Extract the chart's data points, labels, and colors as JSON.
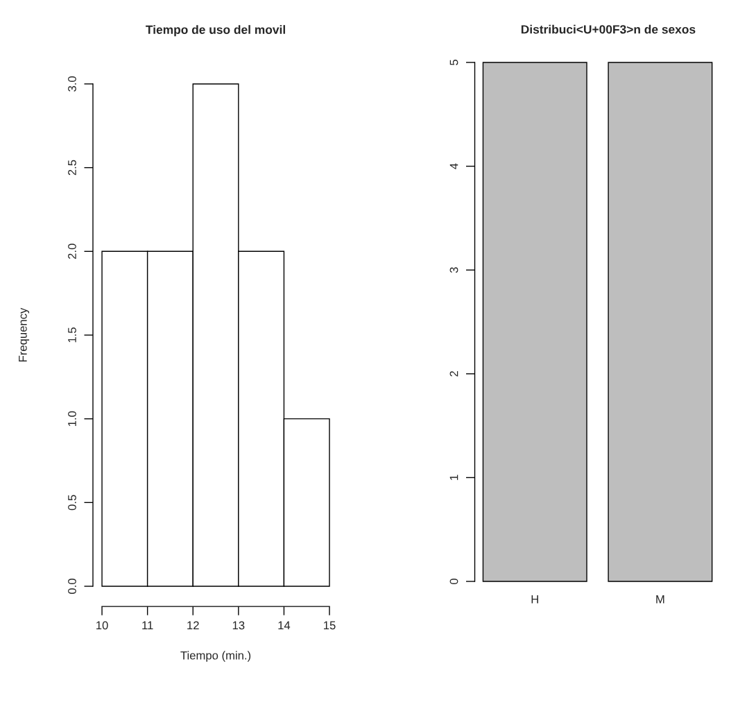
{
  "chart_data": [
    {
      "type": "histogram",
      "title": "Tiempo de uso del movil",
      "xlabel": "Tiempo (min.)",
      "ylabel": "Frequency",
      "bins": [
        10,
        11,
        12,
        13,
        14,
        15
      ],
      "values": [
        2,
        2,
        3,
        2,
        1
      ],
      "color": "#ffffff",
      "xlim": [
        10,
        15
      ],
      "ylim": [
        0,
        3
      ],
      "xticks": [
        10,
        11,
        12,
        13,
        14,
        15
      ],
      "yticks": [
        {
          "value": 0,
          "label": "0.0"
        },
        {
          "value": 0.5,
          "label": "0.5"
        },
        {
          "value": 1,
          "label": "1.0"
        },
        {
          "value": 1.5,
          "label": "1.5"
        },
        {
          "value": 2,
          "label": "2.0"
        },
        {
          "value": 2.5,
          "label": "2.5"
        },
        {
          "value": 3,
          "label": "3.0"
        }
      ]
    },
    {
      "type": "bar",
      "title": "Distribuci<U+00F3>n de sexos",
      "categories": [
        "H",
        "M"
      ],
      "values": [
        5,
        5
      ],
      "color": "#bebebe",
      "ylim": [
        0,
        5
      ],
      "yticks": [
        0,
        1,
        2,
        3,
        4,
        5
      ]
    }
  ]
}
